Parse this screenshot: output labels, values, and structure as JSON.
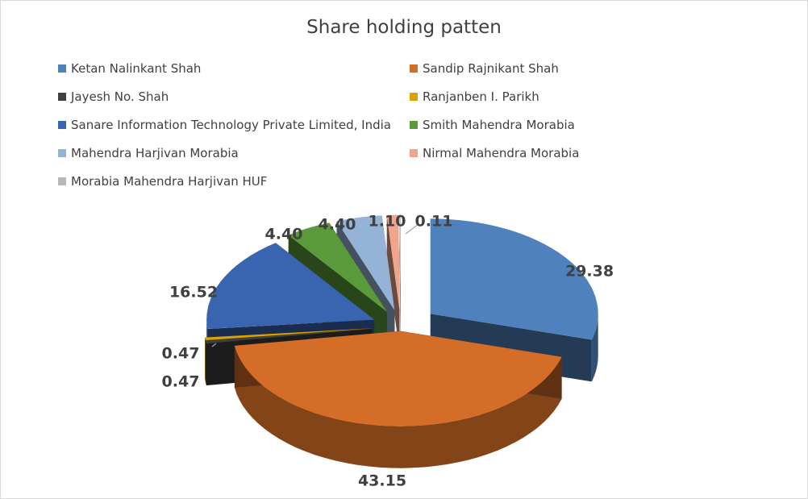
{
  "chart_data": {
    "type": "pie",
    "title": "Share holding patten",
    "legend_position": "top",
    "categories": [
      "Ketan Nalinkant Shah",
      "Sandip Rajnikant Shah",
      "Jayesh No. Shah",
      "Ranjanben I. Parikh",
      "Sanare Information Technology Private Limited, India",
      "Smith Mahendra Morabia",
      "Mahendra Harjivan Morabia",
      "Nirmal Mahendra Morabia",
      "Morabia Mahendra Harjivan HUF"
    ],
    "values": [
      29.38,
      43.15,
      0.47,
      0.47,
      16.52,
      4.4,
      4.4,
      1.1,
      0.11
    ],
    "labels": [
      "29.38",
      "43.15",
      "0.47",
      "0.47",
      "16.52",
      "4.40",
      "4.40",
      "1.10",
      "0.11"
    ],
    "colors": [
      "#4f81bd",
      "#d46d27",
      "#3f3f3f",
      "#d9a400",
      "#3964b0",
      "#5a9a3a",
      "#95b3d7",
      "#f0a58c",
      "#b7b7b7"
    ]
  }
}
